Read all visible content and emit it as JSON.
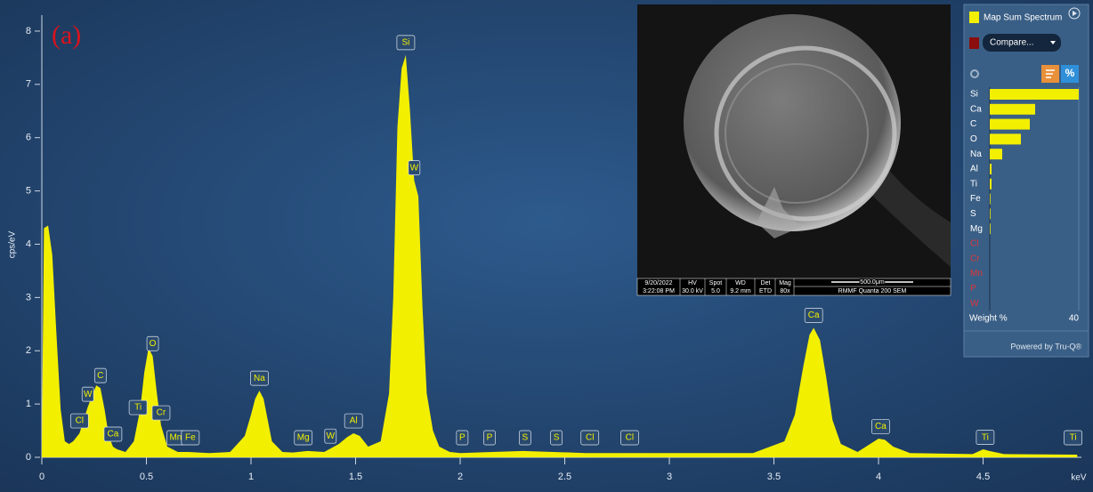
{
  "chart_data": [
    {
      "type": "spectrum",
      "x_label": "keV",
      "y_label": "cps/eV",
      "color": "#f2ef00",
      "x": [
        0,
        0.01,
        0.03,
        0.05,
        0.07,
        0.09,
        0.11,
        0.13,
        0.15,
        0.18,
        0.2,
        0.22,
        0.24,
        0.26,
        0.28,
        0.3,
        0.32,
        0.34,
        0.36,
        0.4,
        0.44,
        0.47,
        0.49,
        0.51,
        0.53,
        0.55,
        0.57,
        0.6,
        0.65,
        0.7,
        0.8,
        0.9,
        0.97,
        1.0,
        1.02,
        1.04,
        1.06,
        1.08,
        1.1,
        1.15,
        1.2,
        1.27,
        1.35,
        1.42,
        1.46,
        1.49,
        1.52,
        1.56,
        1.62,
        1.66,
        1.68,
        1.7,
        1.72,
        1.74,
        1.76,
        1.78,
        1.8,
        1.82,
        1.84,
        1.87,
        1.9,
        1.95,
        2.0,
        2.3,
        2.6,
        3.0,
        3.4,
        3.55,
        3.6,
        3.64,
        3.67,
        3.69,
        3.72,
        3.75,
        3.78,
        3.82,
        3.9,
        3.96,
        4.0,
        4.03,
        4.07,
        4.15,
        4.45,
        4.5,
        4.53,
        4.6,
        4.95
      ],
      "values": [
        0.1,
        4.3,
        4.35,
        3.8,
        2.3,
        0.9,
        0.3,
        0.25,
        0.3,
        0.45,
        0.7,
        0.95,
        1.15,
        1.35,
        1.3,
        0.9,
        0.4,
        0.2,
        0.15,
        0.1,
        0.3,
        0.9,
        1.6,
        2.05,
        1.9,
        1.2,
        0.6,
        0.2,
        0.1,
        0.1,
        0.08,
        0.1,
        0.4,
        0.8,
        1.1,
        1.25,
        1.1,
        0.7,
        0.3,
        0.1,
        0.09,
        0.12,
        0.1,
        0.25,
        0.38,
        0.45,
        0.4,
        0.2,
        0.3,
        1.2,
        3.0,
        6.2,
        7.3,
        7.55,
        6.5,
        5.2,
        4.9,
        2.8,
        1.2,
        0.5,
        0.2,
        0.1,
        0.08,
        0.12,
        0.08,
        0.08,
        0.08,
        0.3,
        0.8,
        1.7,
        2.3,
        2.43,
        2.2,
        1.5,
        0.7,
        0.25,
        0.1,
        0.25,
        0.35,
        0.33,
        0.2,
        0.08,
        0.06,
        0.15,
        0.12,
        0.06,
        0.05
      ],
      "xlim": [
        0,
        4.97
      ],
      "ylim": [
        0,
        8.3
      ],
      "xticks": [
        0,
        0.5,
        1,
        1.5,
        2,
        2.5,
        3,
        3.5,
        4,
        4.5
      ],
      "yticks": [
        0,
        1,
        2,
        3,
        4,
        5,
        6,
        7,
        8
      ],
      "peak_labels": [
        {
          "text": "Cl",
          "x": 0.18
        },
        {
          "text": "W",
          "x": 0.22
        },
        {
          "text": "C",
          "x": 0.28
        },
        {
          "text": "Ca",
          "x": 0.34
        },
        {
          "text": "Ti",
          "x": 0.46
        },
        {
          "text": "O",
          "x": 0.53
        },
        {
          "text": "Cr",
          "x": 0.57
        },
        {
          "text": "Mn",
          "x": 0.64
        },
        {
          "text": "Fe",
          "x": 0.71
        },
        {
          "text": "Na",
          "x": 1.04
        },
        {
          "text": "Mg",
          "x": 1.25
        },
        {
          "text": "W",
          "x": 1.38
        },
        {
          "text": "Al",
          "x": 1.49
        },
        {
          "text": "Si",
          "x": 1.74
        },
        {
          "text": "W",
          "x": 1.78
        },
        {
          "text": "P",
          "x": 2.01
        },
        {
          "text": "P",
          "x": 2.14
        },
        {
          "text": "S",
          "x": 2.31
        },
        {
          "text": "S",
          "x": 2.46
        },
        {
          "text": "Cl",
          "x": 2.62
        },
        {
          "text": "Cl",
          "x": 2.81
        },
        {
          "text": "Ca",
          "x": 3.69
        },
        {
          "text": "Ca",
          "x": 4.01
        },
        {
          "text": "Ti",
          "x": 4.51
        },
        {
          "text": "Ti",
          "x": 4.93
        }
      ]
    },
    {
      "type": "hbar",
      "x_label": "Weight %",
      "categories": [
        "Si",
        "Ca",
        "C",
        "O",
        "Na",
        "Al",
        "Ti",
        "Fe",
        "S",
        "Mg",
        "Cl",
        "Cr",
        "Mn",
        "P",
        "W"
      ],
      "values": [
        40,
        20.4,
        18,
        14,
        5.6,
        0.8,
        0.8,
        0.3,
        0.3,
        0.3,
        0,
        0,
        0,
        0,
        0
      ],
      "category_colors": [
        "#ffffff",
        "#ffffff",
        "#ffffff",
        "#ffffff",
        "#ffffff",
        "#ffffff",
        "#ffffff",
        "#ffffff",
        "#ffffff",
        "#ffffff",
        "#e0353a",
        "#e0353a",
        "#e0353a",
        "#e0353a",
        "#e0353a"
      ],
      "color": "#f2ef00",
      "xlim": [
        0,
        40
      ],
      "xticks": [
        40
      ]
    }
  ],
  "panel_label": "(a)",
  "inset": {
    "date": "9/20/2022",
    "time": "3:22:08 PM",
    "hv_label": "HV",
    "hv": "30.0 kV",
    "spot_label": "Spot",
    "spot": "5.0",
    "wd_label": "WD",
    "wd": "9.2 mm",
    "det_label": "Det",
    "det": "ETD",
    "mag_label": "Mag",
    "mag": "80x",
    "scale": "500.0μm",
    "instrument": "RMMF Quanta 200 SEM"
  },
  "panel": {
    "spectrum_name": "Map Sum Spectrum",
    "compare": "Compare...",
    "percent_button": "%",
    "footer": "Powered by Tru-Q®"
  }
}
